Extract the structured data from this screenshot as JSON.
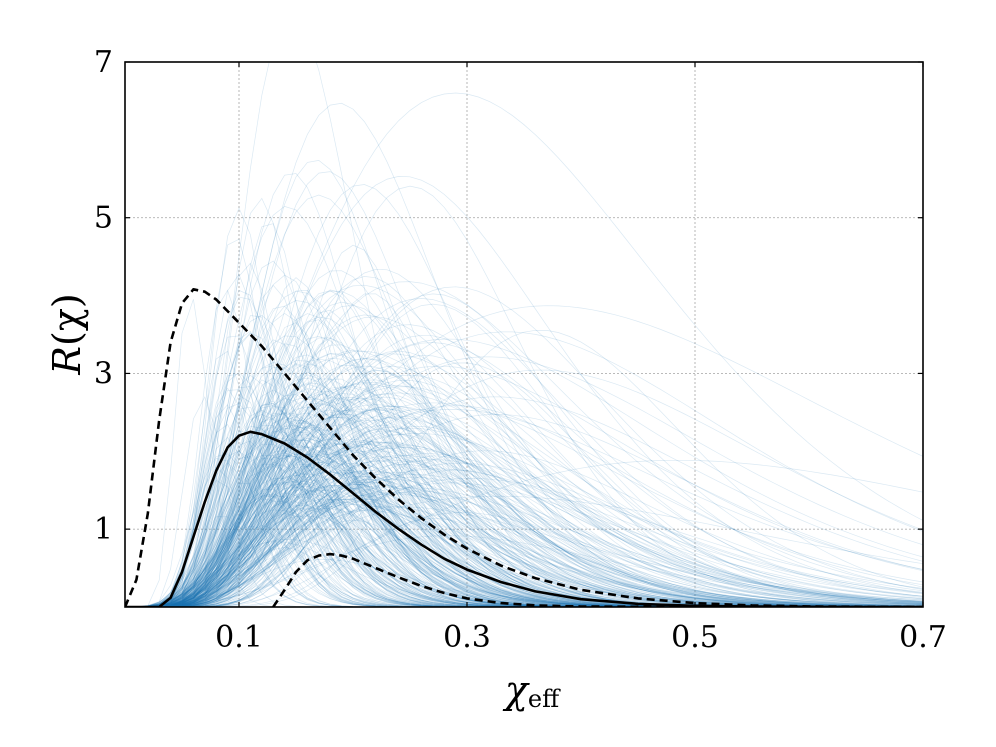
{
  "chart_data": {
    "type": "line",
    "title": "",
    "xlabel_main": "χ",
    "xlabel_sub": "eff",
    "ylabel_pre": "R",
    "ylabel_arg": "(χ)",
    "xlim": [
      0.0,
      0.7
    ],
    "ylim": [
      0,
      7
    ],
    "xticks": [
      0.1,
      0.3,
      0.5,
      0.7
    ],
    "xtick_labels": [
      "0.1",
      "0.3",
      "0.5",
      "0.7"
    ],
    "yticks": [
      1,
      3,
      5,
      7
    ],
    "ytick_labels": [
      "1",
      "3",
      "5",
      "7"
    ],
    "grid": true,
    "colors": {
      "samples": "#1f77b4",
      "median": "#000000",
      "band": "#000000"
    },
    "series": [
      {
        "style": "solid",
        "x": [
          0.0,
          0.03,
          0.04,
          0.05,
          0.06,
          0.07,
          0.08,
          0.09,
          0.1,
          0.11,
          0.12,
          0.14,
          0.16,
          0.18,
          0.2,
          0.22,
          0.24,
          0.26,
          0.28,
          0.3,
          0.33,
          0.36,
          0.4,
          0.45,
          0.5,
          0.55,
          0.6,
          0.65,
          0.7
        ],
        "y": [
          0.0,
          0.0,
          0.12,
          0.45,
          0.9,
          1.35,
          1.75,
          2.05,
          2.2,
          2.25,
          2.22,
          2.1,
          1.92,
          1.7,
          1.46,
          1.22,
          1.0,
          0.8,
          0.62,
          0.48,
          0.32,
          0.2,
          0.1,
          0.04,
          0.015,
          0.006,
          0.002,
          0.0005,
          0.0
        ]
      },
      {
        "style": "dashed",
        "x": [
          0.0,
          0.01,
          0.02,
          0.03,
          0.04,
          0.05,
          0.06,
          0.07,
          0.08,
          0.09,
          0.1,
          0.11,
          0.12,
          0.14,
          0.16,
          0.18,
          0.2,
          0.22,
          0.24,
          0.26,
          0.28,
          0.3,
          0.33,
          0.36,
          0.4,
          0.45,
          0.5,
          0.55,
          0.6,
          0.65,
          0.7
        ],
        "y": [
          0.0,
          0.35,
          1.2,
          2.4,
          3.4,
          3.9,
          4.08,
          4.05,
          3.95,
          3.8,
          3.65,
          3.5,
          3.35,
          3.0,
          2.65,
          2.3,
          1.95,
          1.65,
          1.38,
          1.14,
          0.93,
          0.75,
          0.53,
          0.37,
          0.22,
          0.11,
          0.05,
          0.02,
          0.008,
          0.003,
          0.0
        ]
      },
      {
        "style": "dashed",
        "x": [
          0.13,
          0.14,
          0.15,
          0.16,
          0.17,
          0.18,
          0.19,
          0.2,
          0.21,
          0.22,
          0.24,
          0.26,
          0.28,
          0.3,
          0.33,
          0.36,
          0.4,
          0.45,
          0.5,
          0.55,
          0.6,
          0.65,
          0.7
        ],
        "y": [
          0.0,
          0.22,
          0.45,
          0.6,
          0.66,
          0.68,
          0.66,
          0.62,
          0.56,
          0.5,
          0.38,
          0.27,
          0.18,
          0.11,
          0.05,
          0.02,
          0.006,
          0.002,
          0.0005,
          0.0002,
          0.0001,
          0.0,
          0.0
        ]
      }
    ]
  }
}
